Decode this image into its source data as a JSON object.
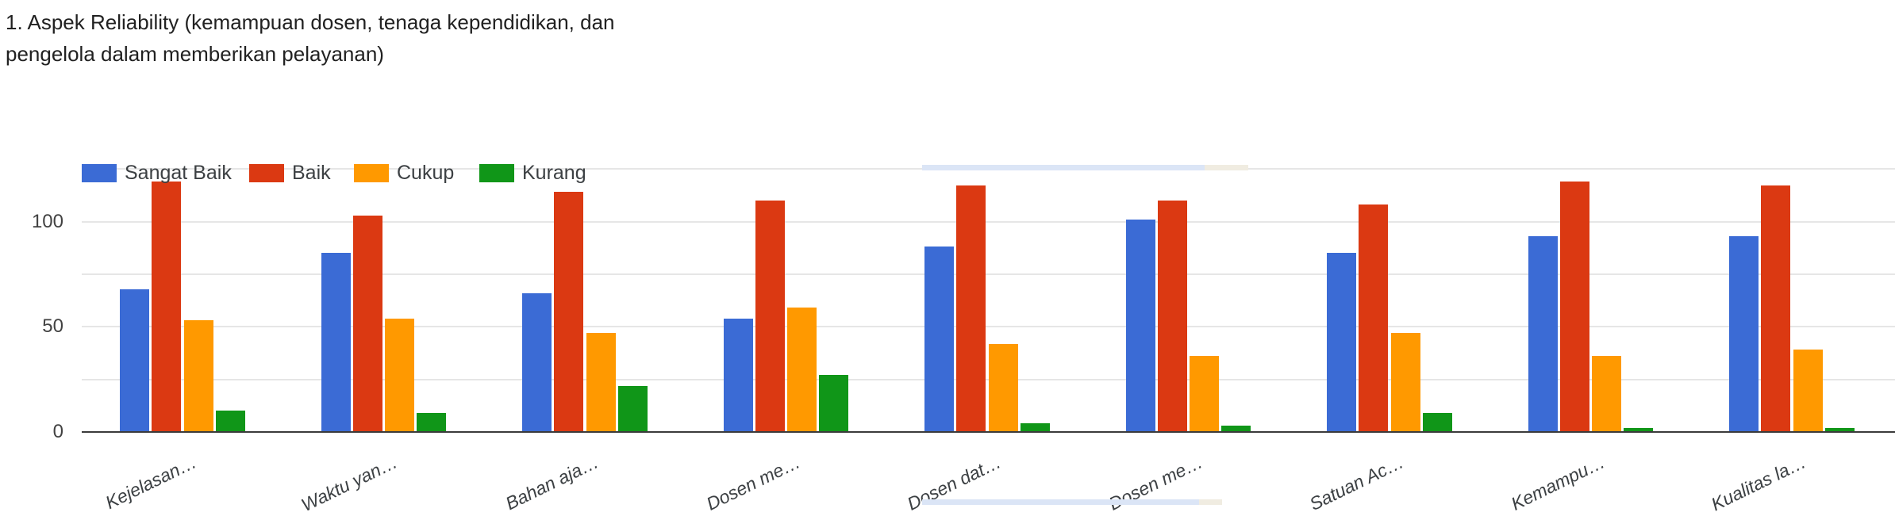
{
  "header": {
    "title_line1": "1. Aspek Reliability (kemampuan dosen, tenaga kependidikan, dan",
    "title_line2": "pengelola dalam memberikan pelayanan)"
  },
  "chart_data": {
    "type": "bar",
    "title": "1. Aspek Reliability (kemampuan dosen, tenaga kependidikan, dan pengelola dalam memberikan pelayanan)",
    "categories": [
      "Kejelasan…",
      "Waktu yan…",
      "Bahan aja…",
      "Dosen me…",
      "Dosen dat…",
      "Dosen me…",
      "Satuan Ac…",
      "Kemampu…",
      "Kualitas la…"
    ],
    "series": [
      {
        "name": "Sangat Baik",
        "color": "#3b6bd5",
        "values": [
          68,
          85,
          66,
          54,
          88,
          101,
          85,
          93,
          93
        ]
      },
      {
        "name": "Baik",
        "color": "#db3912",
        "values": [
          119,
          103,
          114,
          110,
          117,
          110,
          108,
          119,
          117
        ]
      },
      {
        "name": "Cukup",
        "color": "#ff9900",
        "values": [
          53,
          54,
          47,
          59,
          42,
          36,
          47,
          36,
          39
        ]
      },
      {
        "name": "Kurang",
        "color": "#109618",
        "values": [
          10,
          9,
          22,
          27,
          4,
          3,
          9,
          2,
          2
        ]
      }
    ],
    "ylim": [
      0,
      125
    ],
    "yticks": [
      {
        "value": 0,
        "label": "0"
      },
      {
        "value": 50,
        "label": "50"
      },
      {
        "value": 100,
        "label": "100"
      }
    ],
    "gridlines": [
      0,
      25,
      50,
      75,
      100,
      125
    ],
    "grid": true,
    "legend_position": "top-left"
  },
  "colors": {
    "background": "#ffffff",
    "grid": "#e6e6e6",
    "baseline": "#3b3b3b",
    "axis_text": "#424242",
    "category_text": "#3c4043",
    "legend_text": "#3c4043",
    "title_text": "#212121",
    "scroll_thumb_blue": "#dbe5f6",
    "scroll_thumb_beige": "#f0ece1"
  }
}
